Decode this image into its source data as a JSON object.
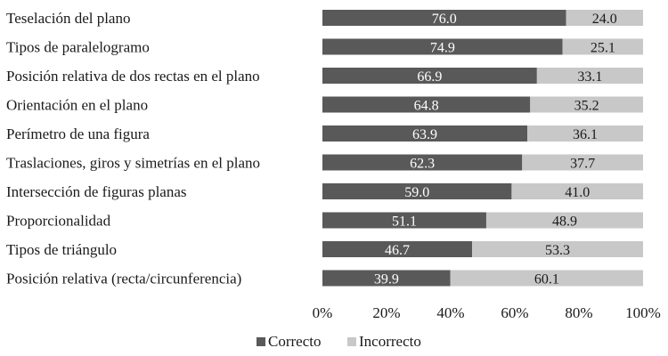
{
  "chart_data": {
    "type": "bar",
    "orientation": "horizontal",
    "stacked": true,
    "percent": true,
    "categories": [
      "Teselación del plano",
      "Tipos de paralelogramo",
      "Posición relativa de dos rectas en el plano",
      "Orientación en el plano",
      "Perímetro de una figura",
      "Traslaciones, giros y simetrías en el plano",
      "Intersección de figuras planas",
      "Proporcionalidad",
      "Tipos de triángulo",
      "Posición relativa (recta/circunferencia)"
    ],
    "series": [
      {
        "name": "Correcto",
        "color": "#595959",
        "text_color": "#ffffff",
        "values": [
          76.0,
          74.9,
          66.9,
          64.8,
          63.9,
          62.3,
          59.0,
          51.1,
          46.7,
          39.9
        ],
        "labels": [
          "76.0",
          "74.9",
          "66.9",
          "64.8",
          "63.9",
          "62.3",
          "59.0",
          "51.1",
          "46.7",
          "39.9"
        ]
      },
      {
        "name": "Incorrecto",
        "color": "#c8c8c8",
        "text_color": "#1a1a1a",
        "values": [
          24.0,
          25.1,
          33.1,
          35.2,
          36.1,
          37.7,
          41.0,
          48.9,
          53.3,
          60.1
        ],
        "labels": [
          "24.0",
          "25.1",
          "33.1",
          "35.2",
          "36.1",
          "37.7",
          "41.0",
          "48.9",
          "53.3",
          "60.1"
        ]
      }
    ],
    "xlim": [
      0,
      100
    ],
    "xticks": [
      "0%",
      "20%",
      "40%",
      "60%",
      "80%",
      "100%"
    ],
    "grid": false,
    "legend_position": "bottom"
  }
}
